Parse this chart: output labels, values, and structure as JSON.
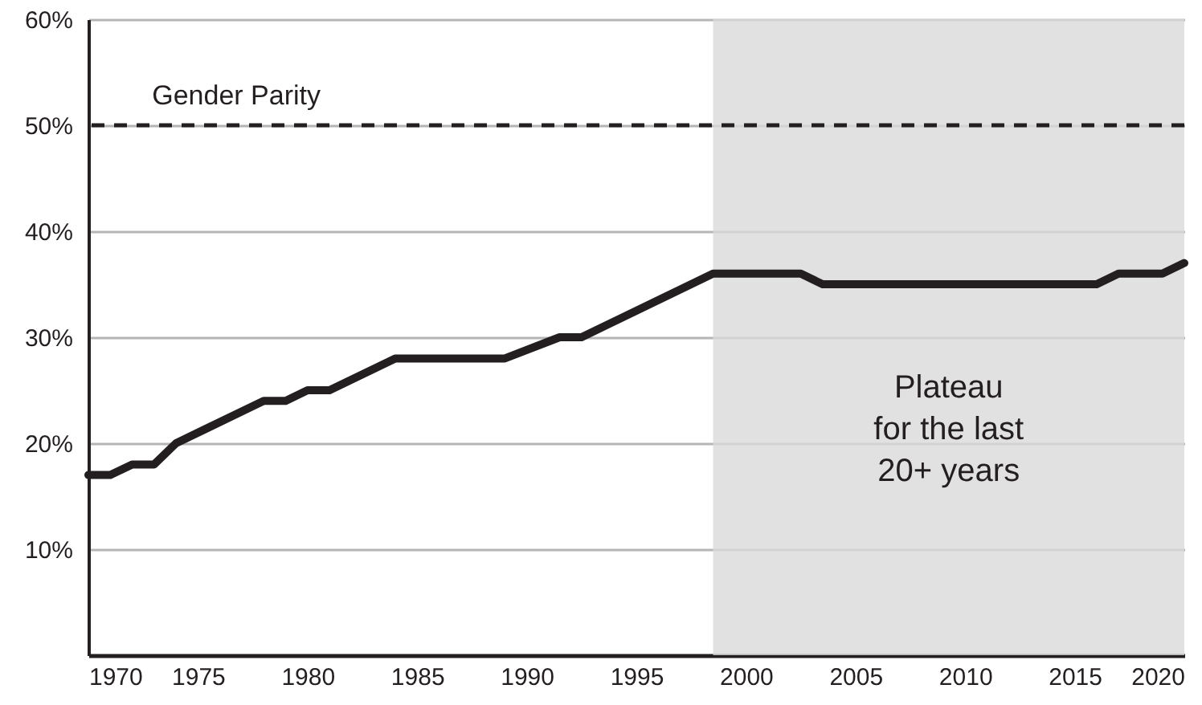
{
  "chart_data": {
    "type": "line",
    "x": [
      1970,
      1971,
      1972,
      1973,
      1974,
      1978,
      1979,
      1980,
      1981,
      1984,
      1989,
      1991.5,
      1992.5,
      1998.5,
      2002.5,
      2003.5,
      2016,
      2017,
      2019,
      2020
    ],
    "series": [
      {
        "color": "#231f20",
        "values": [
          17,
          17,
          18,
          18,
          20,
          24,
          24,
          25,
          25,
          28,
          28,
          30,
          30,
          36,
          36,
          35,
          35,
          36,
          36,
          37
        ]
      }
    ],
    "xlim": [
      1970,
      2020
    ],
    "xticks": [
      1970,
      1975,
      1980,
      1985,
      1990,
      1995,
      2000,
      2005,
      2010,
      2015,
      2020
    ],
    "ylim": [
      0,
      60
    ],
    "yticks": [
      {
        "value": 10,
        "label": "10%"
      },
      {
        "value": 20,
        "label": "20%"
      },
      {
        "value": 30,
        "label": "30%"
      },
      {
        "value": 40,
        "label": "40%"
      },
      {
        "value": 50,
        "label": "50%"
      },
      {
        "value": 60,
        "label": "60%"
      }
    ],
    "grid": "y",
    "marker": "none",
    "line_style": "solid",
    "ref_lines": [
      {
        "axis": "y",
        "value": 50,
        "label": "Gender Parity",
        "color": "#231f20",
        "line_style": "dashed"
      }
    ],
    "bands": [
      {
        "axis": "x",
        "from": 1998.5,
        "to": 2020,
        "label": "Plateau\nfor the last\n20+ years",
        "color": "#d9d9d9"
      }
    ]
  }
}
